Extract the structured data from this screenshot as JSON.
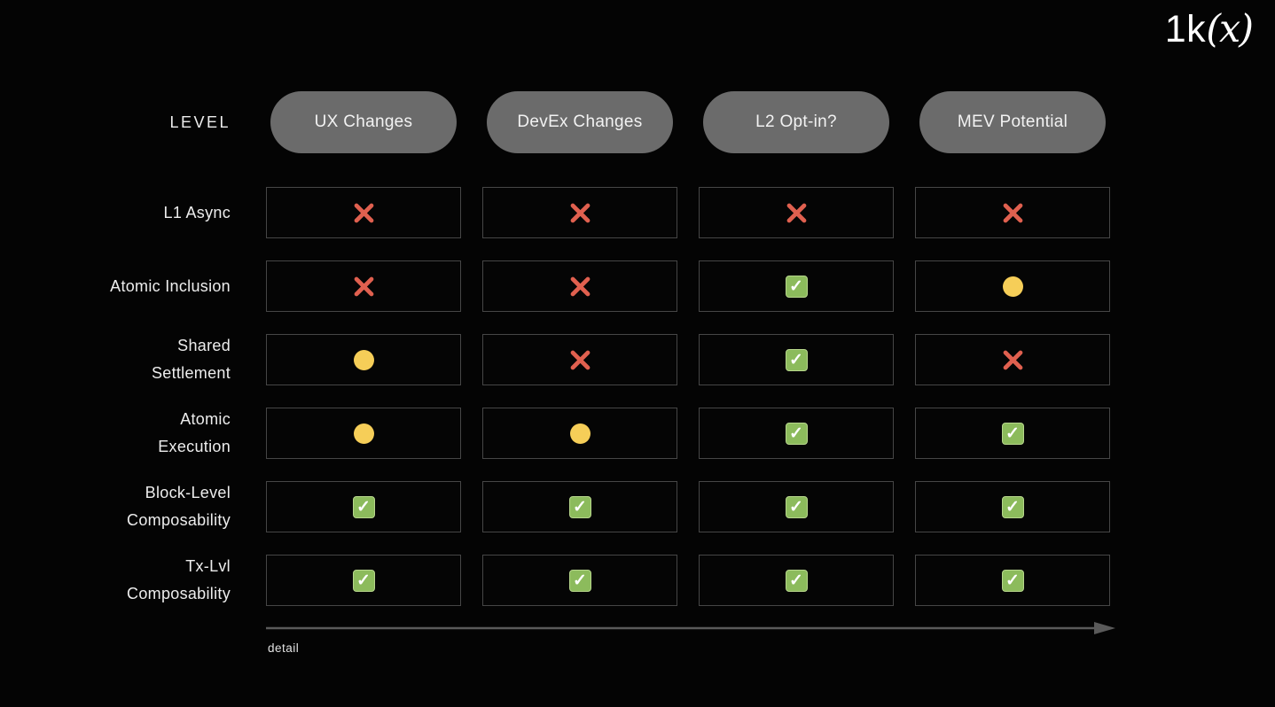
{
  "logo": {
    "prefix": "1k",
    "suffix": "(x)"
  },
  "header": {
    "level_label": "LEVEL",
    "columns": [
      "UX Changes",
      "DevEx Changes",
      "L2 Opt-in?",
      "MEV Potential"
    ]
  },
  "rows": [
    {
      "label": "L1 Async",
      "cells": [
        "cross",
        "cross",
        "cross",
        "cross"
      ]
    },
    {
      "label": "Atomic Inclusion",
      "cells": [
        "cross",
        "cross",
        "check",
        "circle"
      ]
    },
    {
      "label": "Shared\nSettlement",
      "cells": [
        "circle",
        "cross",
        "check",
        "cross"
      ]
    },
    {
      "label": "Atomic\nExecution",
      "cells": [
        "circle",
        "circle",
        "check",
        "check"
      ]
    },
    {
      "label": "Block-Level\nComposability",
      "cells": [
        "check",
        "check",
        "check",
        "check"
      ]
    },
    {
      "label": "Tx-Lvl\nComposability",
      "cells": [
        "check",
        "check",
        "check",
        "check"
      ]
    }
  ],
  "footer": {
    "axis_label": "detail"
  },
  "icons": {
    "check": "✓"
  },
  "colors": {
    "background": "#040404",
    "cross": "#e0604f",
    "circle": "#f6ce58",
    "check_bg": "#8cbb5c",
    "check_mark": "#ffffff",
    "pill_bg": "#6b6b6b",
    "pill_text": "#f2f2f2",
    "cell_border": "#464646",
    "label_text": "#ededed",
    "arrow": "#5a5a5a",
    "logo_text": "#ffffff"
  }
}
